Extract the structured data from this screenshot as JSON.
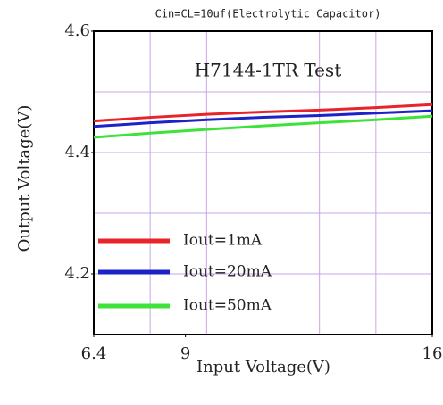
{
  "chart_data": {
    "type": "line",
    "title": "H7144-1TR Test",
    "subtitle": "Cin=CL=10uf(Electrolytic Capacitor)",
    "x_label": "Input Voltage(V)",
    "y_label": "Output Voltage(V)",
    "x": [
      6.4,
      8,
      9.6,
      11.2,
      12.8,
      14.4,
      16
    ],
    "series": [
      {
        "name": "Iout=1mA",
        "color": "#e8232a",
        "values": [
          4.452,
          4.458,
          4.463,
          4.467,
          4.47,
          4.474,
          4.479
        ]
      },
      {
        "name": "Iout=20mA",
        "color": "#1c22c8",
        "values": [
          4.443,
          4.449,
          4.454,
          4.458,
          4.461,
          4.465,
          4.469
        ]
      },
      {
        "name": "Iout=50mA",
        "color": "#3ee23a",
        "values": [
          4.425,
          4.432,
          4.438,
          4.444,
          4.449,
          4.454,
          4.46
        ]
      }
    ],
    "xlim": [
      6.4,
      16
    ],
    "xticks": [
      6.4,
      9,
      16
    ],
    "ylim": [
      4.1,
      4.6
    ],
    "yticks": [
      4.2,
      4.4,
      4.6
    ],
    "xgrid": [
      8,
      9.6,
      11.2,
      12.8,
      14.4
    ],
    "ygrid": [
      4.3,
      4.5
    ],
    "grid": true,
    "grid_color": "#c9a6e6",
    "legend": "lower left"
  }
}
